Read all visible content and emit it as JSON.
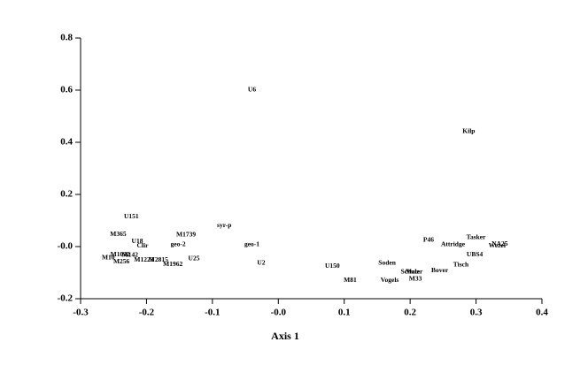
{
  "chart_data": {
    "type": "scatter",
    "x_label": "Axis 1",
    "xlim": [
      -0.3,
      0.4
    ],
    "xticks": [
      -0.3,
      -0.2,
      -0.1,
      {
        "value": 0,
        "label": "-0.0"
      },
      0.1,
      0.2,
      0.3,
      0.4
    ],
    "ylim": [
      -0.2,
      0.8
    ],
    "yticks": [
      -0.2,
      {
        "value": 0,
        "label": "-0.0"
      },
      0.2,
      0.4,
      0.6,
      0.8
    ],
    "color": "#000000",
    "labels": [
      "U6",
      "Kilp",
      "U151",
      "syr-p",
      "M365",
      "M1739",
      "U18",
      "Clir",
      "geo-2",
      "geo-1",
      "Tasker",
      "P46",
      "NA25",
      "Attridge",
      "Wezel",
      "UBS4",
      "M10",
      "M256",
      "M1032",
      "M142",
      "M1223",
      "M2815",
      "M1962",
      "U25",
      "U2",
      "U150",
      "M81",
      "Soden",
      "Vogels",
      "Schulz",
      "Maier",
      "M33",
      "Bover",
      "Tisch"
    ],
    "x": [
      -0.04,
      0.289,
      -0.223,
      -0.082,
      -0.243,
      -0.14,
      -0.214,
      -0.206,
      -0.152,
      -0.04,
      0.3,
      0.228,
      0.336,
      0.265,
      0.332,
      0.298,
      -0.258,
      -0.238,
      -0.24,
      -0.225,
      -0.204,
      -0.182,
      -0.16,
      -0.128,
      -0.026,
      0.082,
      0.109,
      0.165,
      0.169,
      0.2,
      0.206,
      0.208,
      0.245,
      0.277
    ],
    "values": [
      0.6,
      0.441,
      0.115,
      0.081,
      0.047,
      0.044,
      0.02,
      0.003,
      0.007,
      0.007,
      0.034,
      0.024,
      0.01,
      0.007,
      0.003,
      -0.031,
      -0.044,
      -0.058,
      -0.031,
      -0.034,
      -0.051,
      -0.051,
      -0.068,
      -0.047,
      -0.064,
      -0.075,
      -0.129,
      -0.064,
      -0.129,
      -0.098,
      -0.098,
      -0.125,
      -0.092,
      -0.071
    ]
  }
}
